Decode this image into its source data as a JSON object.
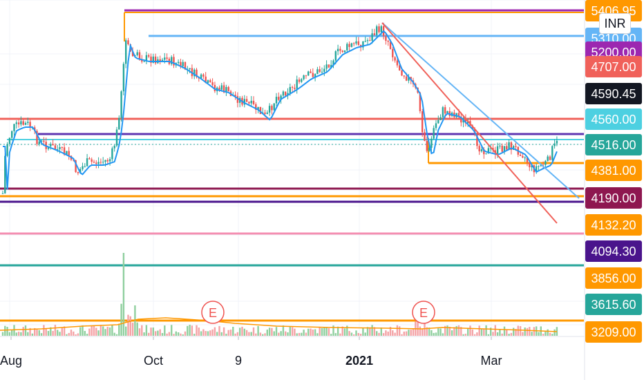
{
  "currency": "INR",
  "chart_data": {
    "type": "candlestick",
    "subtype": "price-with-volume",
    "price_ylim": [
      3209,
      5406
    ],
    "colors": {
      "up": "#26a69a",
      "down": "#ef5350",
      "ema_line": "#2196f3",
      "volume_up": "#8fcf9e",
      "volume_down": "#f4a3a6"
    },
    "x_ticks": [
      {
        "label": "Aug",
        "bold": false
      },
      {
        "label": "Oct",
        "bold": false
      },
      {
        "label": "9",
        "bold": false
      },
      {
        "label": "2021",
        "bold": true
      },
      {
        "label": "Mar",
        "bold": false
      }
    ],
    "price_labels": [
      {
        "text": "5406.95",
        "color": "#ff9800"
      },
      {
        "text": "5310.00",
        "color": "#64b5f6"
      },
      {
        "text": "5200.00",
        "color": "#9c27b0"
      },
      {
        "text": "4707.00",
        "color": "#f0615a"
      },
      {
        "text": "4590.45",
        "color": "#131722"
      },
      {
        "text": "4560.00",
        "color": "#4dd0e1"
      },
      {
        "text": "4516.00",
        "color": "#26a69a"
      },
      {
        "text": "4381.00",
        "color": "#ff9800"
      },
      {
        "text": "4190.00",
        "color": "#8e1750"
      },
      {
        "text": "4132.20",
        "color": "#ff9800"
      },
      {
        "text": "4094.30",
        "color": "#4a148c"
      },
      {
        "text": "3856.00",
        "color": "#ff9800"
      },
      {
        "text": "3615.60",
        "color": "#26a69a"
      },
      {
        "text": "3209.00",
        "color": "#ff9800"
      }
    ],
    "earnings_markers": [
      "E",
      "E"
    ]
  }
}
